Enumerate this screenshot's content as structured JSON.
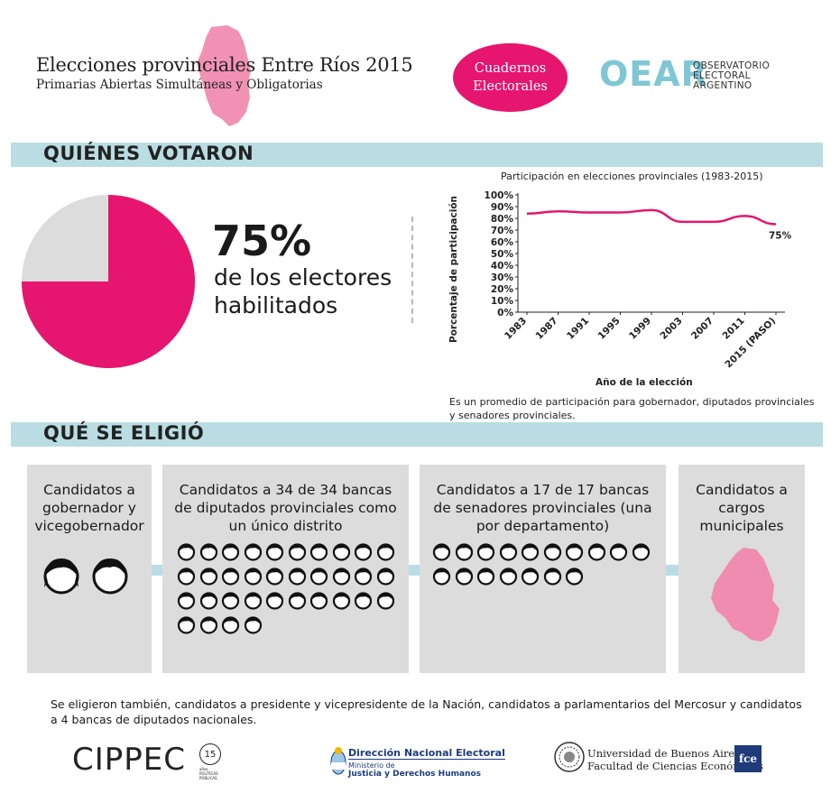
{
  "header": {
    "title": "Elecciones provinciales Entre Ríos 2015",
    "subtitle": "Primarias Abiertas Simultáneas y Obligatorias",
    "badge_line1": "Cuadernos",
    "badge_line2": "Electorales",
    "oear_mark": "OEAR",
    "oear_line1": "OBSERVATORIO",
    "oear_line2": "ELECTORAL",
    "oear_line3": "ARGENTINO"
  },
  "colors": {
    "accent": "#e6156f",
    "map_pink": "#f08cb0",
    "band": "#b9dde3",
    "card": "#dcdcdc",
    "oear": "#7fc7d4"
  },
  "turnout": {
    "section_title": "QUIÉNES VOTARON",
    "value": 75,
    "big_label": "75%",
    "caption": "de los electores habilitados"
  },
  "chart_data": {
    "type": "line",
    "title": "Participación en elecciones provinciales (1983-2015)",
    "xlabel": "Año de la elección",
    "ylabel": "Porcentaje de participación",
    "ylim": [
      0,
      100
    ],
    "yticks": [
      "0%",
      "10%",
      "20%",
      "30%",
      "40%",
      "50%",
      "60%",
      "70%",
      "80%",
      "90%",
      "100%"
    ],
    "categories": [
      "1983",
      "1987",
      "1991",
      "1995",
      "1999",
      "2003",
      "2007",
      "2011",
      "2015 (PASO)"
    ],
    "values": [
      84,
      86,
      85,
      85,
      87,
      77,
      77,
      82,
      75
    ],
    "end_label": "75%",
    "note": "Es un promedio de participación para gobernador, diputados provinciales y senadores provinciales."
  },
  "elected": {
    "section_title": "QUÉ SE ELIGIÓ",
    "cards": [
      {
        "title": "Candidatos a gobernador y vicegobernador",
        "count": 2
      },
      {
        "title": "Candidatos a 34 de 34 bancas de diputados provinciales como un único distrito",
        "count": 34
      },
      {
        "title": "Candidatos a 17 de 17 bancas de senadores provinciales (una por departamento)",
        "count": 17
      },
      {
        "title": "Candidatos a cargos municipales"
      }
    ],
    "note": "Se eligieron también, candidatos a presidente y vicepresidente de la Nación, candidatos a parlamentarios del Mercosur y candidatos a 4 bancas de diputados nacionales."
  },
  "footer": {
    "cippec": "CIPPEC",
    "cippec_badge": "15",
    "cippec_badge_word": "años",
    "cippec_sub1": "POLÍTICAS",
    "cippec_sub2": "PÚBLICAS",
    "dne_title": "Dirección Nacional Electoral",
    "dne_line2": "Ministerio de",
    "dne_line3": "Justicia y Derechos Humanos",
    "uba_line1": "Universidad de Buenos Aires",
    "uba_line2": "Facultad de Ciencias Económicas",
    "fce": "fce"
  }
}
